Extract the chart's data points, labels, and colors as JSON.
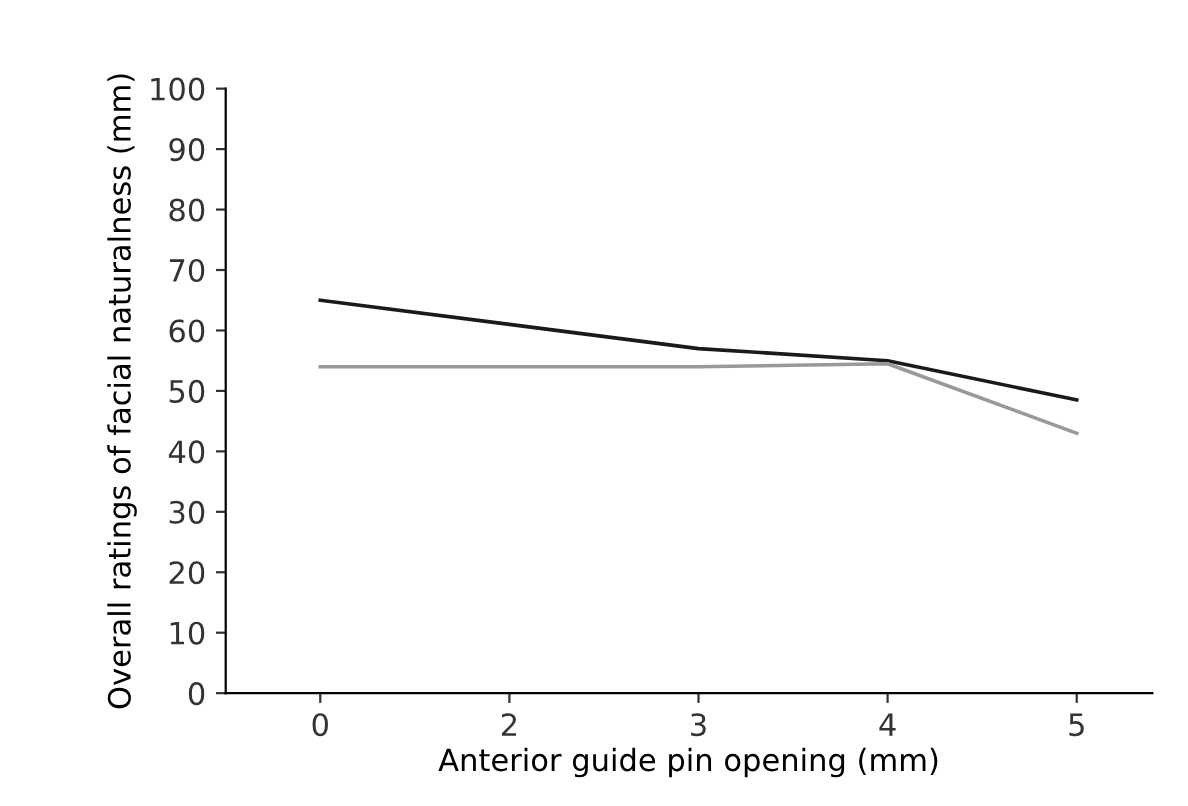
{
  "chart_data": {
    "type": "line",
    "xlabel": "Anterior guide pin opening (mm)",
    "ylabel": "Overall ratings of facial naturalness (mm)",
    "categories": [
      "0",
      "2",
      "3",
      "4",
      "5"
    ],
    "series": [
      {
        "color": "#1a1a1a",
        "values": [
          65,
          61,
          57,
          55,
          48.5
        ]
      },
      {
        "color": "#999999",
        "values": [
          54,
          54,
          54,
          54.5,
          43
        ]
      }
    ],
    "ylim": [
      0,
      100
    ],
    "yticks": [
      0,
      10,
      20,
      30,
      40,
      50,
      60,
      70,
      80,
      90,
      100
    ],
    "grid": false,
    "legend": false,
    "marker": "none",
    "line_style": "solid"
  }
}
